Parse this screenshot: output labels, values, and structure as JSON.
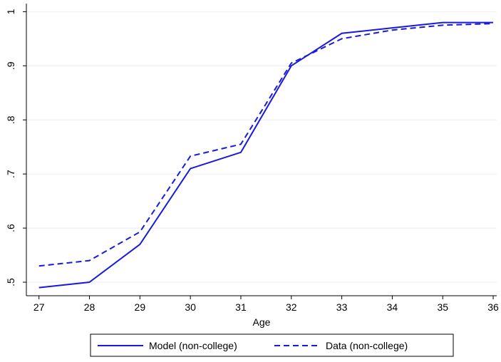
{
  "chart_data": {
    "type": "line",
    "x": [
      27,
      28,
      29,
      30,
      31,
      32,
      33,
      34,
      35,
      36
    ],
    "x_label": "Age",
    "series": [
      {
        "name": "Model (non-college)",
        "color": "#1a1adc",
        "dash": "solid",
        "values": [
          0.49,
          0.5,
          0.57,
          0.71,
          0.74,
          0.9,
          0.96,
          0.97,
          0.98,
          0.98
        ]
      },
      {
        "name": "Data (non-college)",
        "color": "#1a1adc",
        "dash": "dashed",
        "values": [
          0.53,
          0.54,
          0.593,
          0.733,
          0.755,
          0.905,
          0.95,
          0.966,
          0.975,
          0.978
        ]
      }
    ],
    "xlim": [
      26.75,
      36.07
    ],
    "ylim": [
      0.475,
      1.015
    ],
    "xticks": [
      27,
      28,
      29,
      30,
      31,
      32,
      33,
      34,
      35,
      36
    ],
    "yticks": [
      {
        "value": 0.5,
        "label": ".5"
      },
      {
        "value": 0.6,
        "label": ".6"
      },
      {
        "value": 0.7,
        "label": ".7"
      },
      {
        "value": 0.8,
        "label": ".8"
      },
      {
        "value": 0.9,
        "label": ".9"
      },
      1
    ],
    "grid": true,
    "legend": "bottom"
  }
}
